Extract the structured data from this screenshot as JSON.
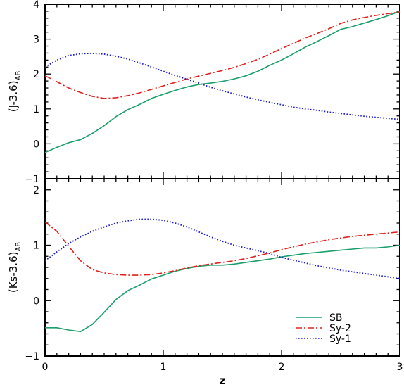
{
  "chart_data": [
    {
      "type": "line",
      "panel": "top",
      "xlabel": "",
      "ylabel_main": "(J-3.6)",
      "ylabel_sub": "AB",
      "xlim": [
        0,
        3
      ],
      "ylim": [
        -1,
        4
      ],
      "xticks": [
        0,
        1,
        2,
        3
      ],
      "xtick_labels_shown": false,
      "yticks": [
        -1,
        0,
        1,
        2,
        3,
        4
      ],
      "ytick_labels": [
        "−1",
        "0",
        "1",
        "2",
        "3",
        "4"
      ],
      "series": [
        {
          "name": "SB",
          "color": "#1a9e6b",
          "dash": "solid",
          "x": [
            0,
            0.1,
            0.2,
            0.3,
            0.4,
            0.5,
            0.6,
            0.7,
            0.8,
            0.9,
            1.0,
            1.1,
            1.2,
            1.3,
            1.4,
            1.5,
            1.6,
            1.7,
            1.8,
            1.9,
            2.0,
            2.1,
            2.2,
            2.3,
            2.4,
            2.5,
            2.6,
            2.7,
            2.8,
            2.9,
            3.0
          ],
          "y": [
            -0.25,
            -0.1,
            0.03,
            0.12,
            0.3,
            0.52,
            0.78,
            0.98,
            1.13,
            1.3,
            1.42,
            1.53,
            1.63,
            1.7,
            1.74,
            1.79,
            1.86,
            1.95,
            2.08,
            2.25,
            2.4,
            2.58,
            2.77,
            2.93,
            3.1,
            3.28,
            3.36,
            3.46,
            3.56,
            3.67,
            3.8
          ]
        },
        {
          "name": "Sy-2",
          "color": "#e0201b",
          "dash": "dashdot",
          "x": [
            0,
            0.1,
            0.2,
            0.3,
            0.4,
            0.5,
            0.6,
            0.7,
            0.8,
            0.9,
            1.0,
            1.1,
            1.2,
            1.3,
            1.4,
            1.5,
            1.6,
            1.7,
            1.8,
            1.9,
            2.0,
            2.1,
            2.2,
            2.3,
            2.4,
            2.5,
            2.6,
            2.7,
            2.8,
            2.9,
            3.0
          ],
          "y": [
            1.95,
            1.78,
            1.6,
            1.47,
            1.36,
            1.3,
            1.32,
            1.38,
            1.46,
            1.56,
            1.66,
            1.76,
            1.86,
            1.94,
            2.02,
            2.1,
            2.19,
            2.3,
            2.42,
            2.57,
            2.73,
            2.88,
            3.03,
            3.16,
            3.3,
            3.45,
            3.55,
            3.62,
            3.68,
            3.73,
            3.78
          ]
        },
        {
          "name": "Sy-1",
          "color": "#1c1ccf",
          "dash": "dotted",
          "x": [
            0,
            0.1,
            0.2,
            0.3,
            0.4,
            0.5,
            0.6,
            0.7,
            0.8,
            0.9,
            1.0,
            1.1,
            1.2,
            1.3,
            1.4,
            1.5,
            1.6,
            1.7,
            1.8,
            1.9,
            2.0,
            2.1,
            2.2,
            2.3,
            2.4,
            2.5,
            2.6,
            2.7,
            2.8,
            2.9,
            3.0
          ],
          "y": [
            2.2,
            2.4,
            2.53,
            2.58,
            2.59,
            2.57,
            2.51,
            2.43,
            2.32,
            2.2,
            2.08,
            1.96,
            1.85,
            1.74,
            1.62,
            1.52,
            1.43,
            1.34,
            1.26,
            1.19,
            1.12,
            1.05,
            1.0,
            0.96,
            0.91,
            0.87,
            0.83,
            0.79,
            0.76,
            0.73,
            0.7
          ]
        }
      ]
    },
    {
      "type": "line",
      "panel": "bottom",
      "xlabel": "z",
      "ylabel_main": "(Ks-3.6)",
      "ylabel_sub": "AB",
      "xlim": [
        0,
        3
      ],
      "ylim": [
        -1,
        2.2
      ],
      "xticks": [
        0,
        1,
        2,
        3
      ],
      "xtick_labels": [
        "0",
        "1",
        "2",
        "3"
      ],
      "yticks": [
        -1,
        0,
        1,
        2
      ],
      "ytick_labels": [
        "−1",
        "0",
        "1",
        "2"
      ],
      "legend": {
        "placement": "bottom-right",
        "entries": [
          "SB",
          "Sy-2",
          "Sy-1"
        ]
      },
      "series": [
        {
          "name": "SB",
          "color": "#1a9e6b",
          "dash": "solid",
          "x": [
            0,
            0.1,
            0.2,
            0.3,
            0.4,
            0.5,
            0.6,
            0.7,
            0.8,
            0.9,
            1.0,
            1.1,
            1.2,
            1.3,
            1.4,
            1.5,
            1.6,
            1.7,
            1.8,
            1.9,
            2.0,
            2.1,
            2.2,
            2.3,
            2.4,
            2.5,
            2.6,
            2.7,
            2.8,
            2.9,
            3.0
          ],
          "y": [
            -0.49,
            -0.49,
            -0.53,
            -0.56,
            -0.43,
            -0.21,
            0.02,
            0.18,
            0.28,
            0.39,
            0.46,
            0.53,
            0.58,
            0.62,
            0.64,
            0.64,
            0.66,
            0.69,
            0.72,
            0.75,
            0.79,
            0.82,
            0.85,
            0.87,
            0.89,
            0.91,
            0.93,
            0.95,
            0.95,
            0.97,
            1.0
          ]
        },
        {
          "name": "Sy-2",
          "color": "#e0201b",
          "dash": "dashdot",
          "x": [
            0,
            0.1,
            0.2,
            0.3,
            0.4,
            0.5,
            0.6,
            0.7,
            0.8,
            0.9,
            1.0,
            1.1,
            1.2,
            1.3,
            1.4,
            1.5,
            1.6,
            1.7,
            1.8,
            1.9,
            2.0,
            2.1,
            2.2,
            2.3,
            2.4,
            2.5,
            2.6,
            2.7,
            2.8,
            2.9,
            3.0
          ],
          "y": [
            1.42,
            1.25,
            0.98,
            0.72,
            0.56,
            0.5,
            0.47,
            0.46,
            0.46,
            0.47,
            0.5,
            0.54,
            0.59,
            0.63,
            0.66,
            0.69,
            0.72,
            0.76,
            0.81,
            0.86,
            0.92,
            0.97,
            1.02,
            1.06,
            1.1,
            1.13,
            1.16,
            1.18,
            1.2,
            1.22,
            1.24
          ]
        },
        {
          "name": "Sy-1",
          "color": "#1c1ccf",
          "dash": "dotted",
          "x": [
            0,
            0.1,
            0.2,
            0.3,
            0.4,
            0.5,
            0.6,
            0.7,
            0.8,
            0.9,
            1.0,
            1.1,
            1.2,
            1.3,
            1.4,
            1.5,
            1.6,
            1.7,
            1.8,
            1.9,
            2.0,
            2.1,
            2.2,
            2.3,
            2.4,
            2.5,
            2.6,
            2.7,
            2.8,
            2.9,
            3.0
          ],
          "y": [
            0.72,
            0.88,
            1.03,
            1.15,
            1.25,
            1.33,
            1.4,
            1.44,
            1.47,
            1.47,
            1.45,
            1.4,
            1.33,
            1.24,
            1.15,
            1.07,
            1.0,
            0.95,
            0.9,
            0.85,
            0.78,
            0.73,
            0.68,
            0.63,
            0.59,
            0.55,
            0.52,
            0.49,
            0.46,
            0.43,
            0.4
          ]
        }
      ]
    }
  ]
}
